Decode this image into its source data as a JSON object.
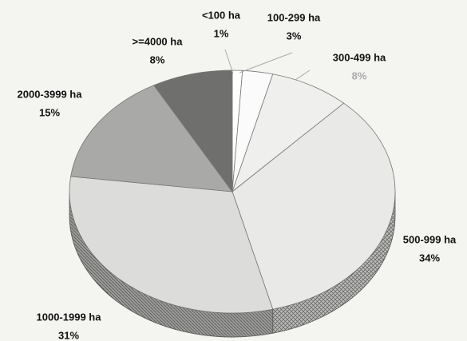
{
  "chart_data": {
    "type": "pie",
    "categories": [
      "<100 ha",
      "100-299 ha",
      "300-499 ha",
      "500-999 ha",
      "1000-1999 ha",
      "2000-3999 ha",
      ">=4000 ha"
    ],
    "values": [
      1,
      3,
      8,
      34,
      31,
      15,
      8
    ],
    "value_labels": [
      "1%",
      "3%",
      "8%",
      "34%",
      "31%",
      "15%",
      "8%"
    ],
    "colors": [
      "#ffffff",
      "#fbfbfb",
      "#efefed",
      "#e9e9e7",
      "#dcdcda",
      "#a9a9a7",
      "#6f6f6d"
    ]
  }
}
